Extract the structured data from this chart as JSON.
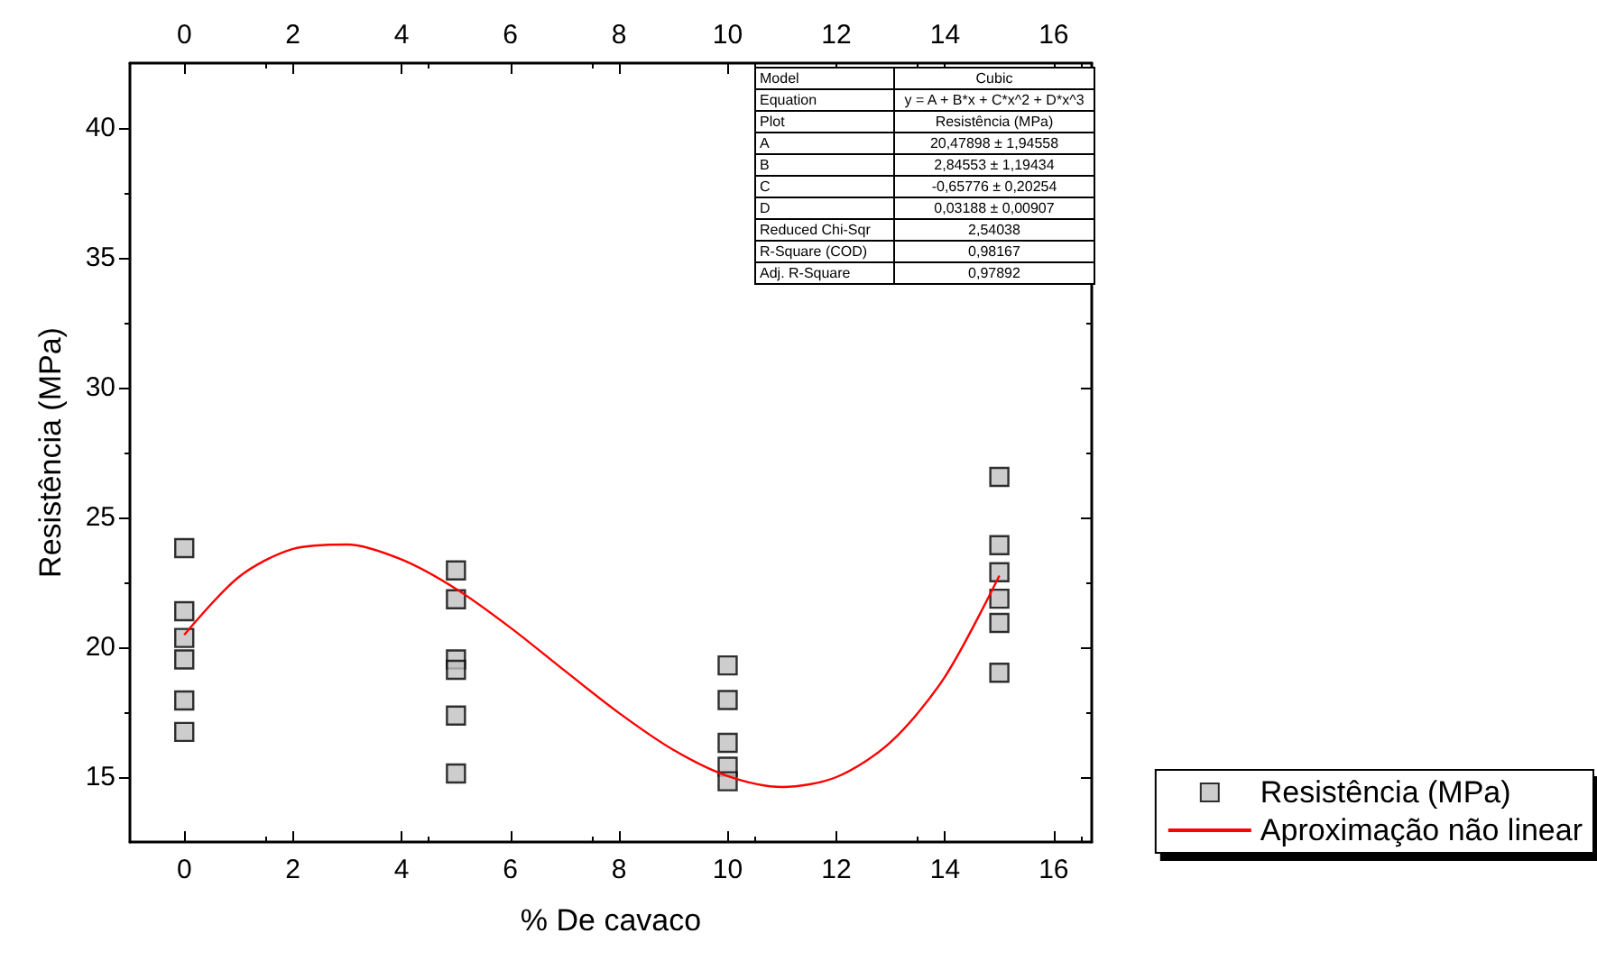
{
  "chart_data": {
    "type": "scatter",
    "xlabel": "% De cavaco",
    "ylabel": "Resistência (MPa)",
    "xlim": [
      -1,
      16.7
    ],
    "xticks": [
      0,
      2,
      4,
      6,
      8,
      10,
      12,
      14,
      16
    ],
    "x2lim": [
      -1,
      16.7
    ],
    "x2ticks": [
      0,
      2,
      4,
      6,
      8,
      10,
      12,
      14,
      16
    ],
    "ylim": [
      12.5,
      42.5
    ],
    "yticks": [
      15,
      20,
      25,
      30,
      35,
      40
    ],
    "series": [
      {
        "name": "Resistência (MPa)",
        "color": "#c0c0c0",
        "marker": "square",
        "x": [
          0,
          0,
          0,
          0,
          0,
          0,
          5,
          5,
          5,
          5,
          5,
          5,
          10,
          10,
          10,
          10,
          10,
          15,
          15,
          15,
          15,
          15,
          15
        ],
        "values": [
          23.82,
          21.39,
          20.36,
          19.53,
          17.95,
          16.74,
          22.96,
          21.85,
          19.53,
          19.13,
          17.37,
          15.14,
          19.3,
          17.97,
          16.32,
          15.4,
          14.84,
          26.56,
          23.93,
          22.89,
          21.87,
          20.94,
          19.02
        ]
      },
      {
        "name": "Aproximação não linear",
        "type": "line",
        "color": "#ff0000",
        "marker": "none",
        "line_style": "solid",
        "x": [
          0,
          1,
          2,
          3,
          4,
          5,
          6,
          7,
          8,
          9,
          10,
          11,
          12,
          13,
          14,
          15
        ],
        "values": [
          20.48,
          22.7,
          23.79,
          23.96,
          23.38,
          22.25,
          20.76,
          19.1,
          17.47,
          16.05,
          15.04,
          14.62,
          15.0,
          16.35,
          18.87,
          22.76
        ]
      }
    ],
    "annotations": [
      "Model",
      "Cubic",
      "Equation",
      "y = A + B*x + C*x^2 + D*x^3",
      "Plot",
      "Resistência (MPa)",
      "A",
      "20,47898 ± 1,94558",
      "B",
      "2,84553 ± 1,19434",
      "C",
      "-0,65776 ± 0,20254",
      "D",
      "0,03188 ± 0,00907",
      "Reduced Chi-Sqr",
      "2,54038",
      "R-Square (COD)",
      "0,98167",
      "Adj. R-Square",
      "0,97892"
    ],
    "legend": "bottom right",
    "grid": false
  }
}
